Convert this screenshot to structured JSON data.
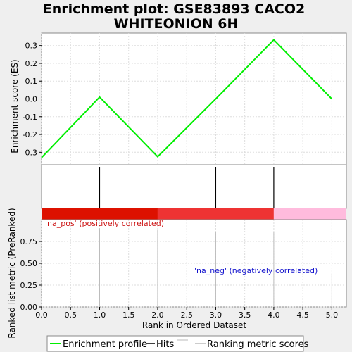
{
  "title_lines": [
    "Enrichment plot: GSE83893 CACO2",
    "WHITEONION 6H"
  ],
  "colors": {
    "es_line": "#00ee00",
    "hits": "#000000",
    "bar_segments": [
      "#dd1100",
      "#ee3333",
      "#ffbbdd"
    ],
    "pos_label": "#cc1111",
    "neg_label": "#1111cc",
    "ranking": "#bbbbbb",
    "grid": "#dddddd",
    "background": "#efefef",
    "plot_bg": "#ffffff"
  },
  "chart_data": {
    "type": "line",
    "x_range": [
      0,
      5.25
    ],
    "x_ticks": [
      "0.0",
      "0.5",
      "1.0",
      "1.5",
      "2.0",
      "2.5",
      "3.0",
      "3.5",
      "4.0",
      "4.5",
      "5.0"
    ],
    "x_tick_values": [
      0,
      0.5,
      1,
      1.5,
      2,
      2.5,
      3,
      3.5,
      4,
      4.5,
      5
    ],
    "xlabel": "Rank in Ordered Dataset",
    "es_panel": {
      "ylabel": "Enrichment score (ES)",
      "y_range": [
        -0.37,
        0.37
      ],
      "y_ticks": [
        "0.3",
        "0.2",
        "0.1",
        "0.0",
        "-0.1",
        "-0.2",
        "-0.3"
      ],
      "y_tick_values": [
        0.3,
        0.2,
        0.1,
        0.0,
        -0.1,
        -0.2,
        -0.3
      ],
      "x": [
        0,
        1,
        2,
        3,
        4,
        5
      ],
      "y": [
        -0.33,
        0.01,
        -0.325,
        0.0,
        0.332,
        0.0
      ]
    },
    "hits": [
      1,
      3,
      4
    ],
    "bar_segments": [
      [
        0,
        2
      ],
      [
        2,
        4
      ],
      [
        4,
        5.25
      ]
    ],
    "ranking_panel": {
      "ylabel": "Ranked list metric (PreRanked)",
      "y_range": [
        0,
        1.0
      ],
      "y_ticks": [
        "0.75",
        "0.50",
        "0.25",
        "0.00"
      ],
      "y_tick_values": [
        0.75,
        0.5,
        0.25,
        0.0
      ],
      "x": [
        1,
        2,
        3,
        4,
        5
      ],
      "y": [
        0.9,
        0.88,
        0.86,
        0.86,
        0.38
      ]
    },
    "pos_label": "'na_pos' (positively correlated)",
    "neg_label": "'na_neg' (negatively correlated)",
    "legend": [
      "Enrichment profile",
      "Hits",
      "Ranking metric scores"
    ]
  }
}
